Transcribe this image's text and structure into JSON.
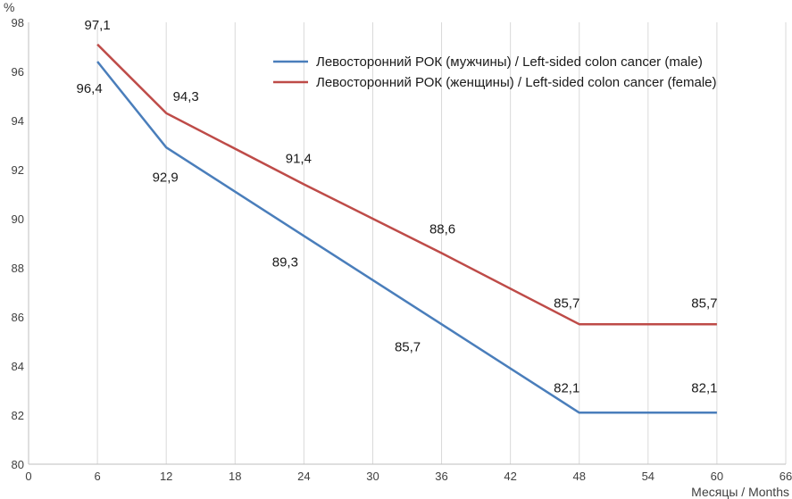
{
  "chart_data": {
    "type": "line",
    "ylabel": "%",
    "xlabel": "Месяцы / Months",
    "xlim": [
      0,
      66
    ],
    "ylim": [
      80,
      98
    ],
    "x_ticks": [
      0,
      6,
      12,
      18,
      24,
      30,
      36,
      42,
      48,
      54,
      60,
      66
    ],
    "y_ticks": [
      80,
      82,
      84,
      86,
      88,
      90,
      92,
      94,
      96,
      98
    ],
    "grid": "vertical",
    "legend_position": "top-right",
    "x": [
      6,
      12,
      24,
      36,
      48,
      60
    ],
    "series": [
      {
        "name": "Левосторонний РОК (мужчины) / Left-sided colon cancer (male)",
        "color": "#4a7ebb",
        "values": [
          96.4,
          92.9,
          89.3,
          85.7,
          82.1,
          82.1
        ],
        "labels": [
          "96,4",
          "92,9",
          "89,3",
          "85,7",
          "82,1",
          "82,1"
        ]
      },
      {
        "name": "Левосторонний РОК (женщины) / Left-sided colon cancer (female)",
        "color": "#be4b48",
        "values": [
          97.1,
          94.3,
          91.4,
          88.6,
          85.7,
          85.7
        ],
        "labels": [
          "97,1",
          "94,3",
          "91,4",
          "88,6",
          "85,7",
          "85,7"
        ]
      }
    ]
  }
}
